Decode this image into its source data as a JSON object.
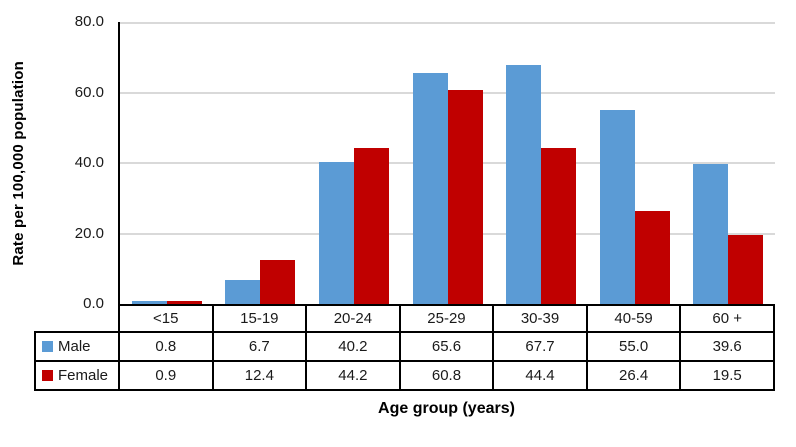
{
  "chart_data": {
    "type": "bar",
    "title": "",
    "xlabel": "Age group (years)",
    "ylabel": "Rate per 100,000 population",
    "categories": [
      "<15",
      "15-19",
      "20-24",
      "25-29",
      "30-39",
      "40-59",
      "60 +"
    ],
    "series": [
      {
        "name": "Male",
        "color": "#5B9BD5",
        "values": [
          0.8,
          6.7,
          40.2,
          65.6,
          67.7,
          55.0,
          39.6
        ]
      },
      {
        "name": "Female",
        "color": "#C00000",
        "values": [
          0.9,
          12.4,
          44.2,
          60.8,
          44.4,
          26.4,
          19.5
        ]
      }
    ],
    "ylim": [
      0,
      80
    ],
    "ytick_step": 20,
    "ytick_labels": [
      "0.0",
      "20.0",
      "40.0",
      "60.0",
      "80.0"
    ],
    "grid": true,
    "legend_position": "table-left",
    "value_decimals": 1
  },
  "colors": {
    "male_bar": "#5B9BD5",
    "female_bar": "#C00000",
    "gridline": "#D9D9D9",
    "axis": "#000000",
    "table_border": "#000000",
    "text": "#1A1A1A",
    "background": "#FFFFFF"
  }
}
